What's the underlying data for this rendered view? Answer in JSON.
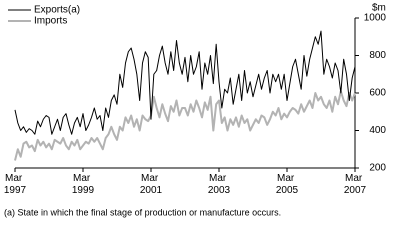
{
  "chart_data": {
    "type": "line",
    "y_axis_label": "$m",
    "footnote": "(a) State in which the final stage of production or manufacture occurs.",
    "categories": [
      "Mar 1997",
      null,
      null,
      null,
      null,
      null,
      null,
      null,
      null,
      null,
      null,
      null,
      null,
      null,
      null,
      null,
      null,
      null,
      null,
      null,
      null,
      null,
      null,
      null,
      "Mar 1999",
      null,
      null,
      null,
      null,
      null,
      null,
      null,
      null,
      null,
      null,
      null,
      null,
      null,
      null,
      null,
      null,
      null,
      null,
      null,
      null,
      null,
      null,
      null,
      "Mar 2001",
      null,
      null,
      null,
      null,
      null,
      null,
      null,
      null,
      null,
      null,
      null,
      null,
      null,
      null,
      null,
      null,
      null,
      null,
      null,
      null,
      null,
      null,
      null,
      "Mar 2003",
      null,
      null,
      null,
      null,
      null,
      null,
      null,
      null,
      null,
      null,
      null,
      null,
      null,
      null,
      null,
      null,
      null,
      null,
      null,
      null,
      null,
      null,
      null,
      "Mar 2005",
      null,
      null,
      null,
      null,
      null,
      null,
      null,
      null,
      null,
      null,
      null,
      null,
      null,
      null,
      null,
      null,
      null,
      null,
      null,
      null,
      null,
      null,
      null,
      "Mar 2007"
    ],
    "series": [
      {
        "name": "Exports(a)",
        "color": "#000000",
        "width": 1,
        "values": [
          510,
          440,
          400,
          420,
          390,
          410,
          400,
          380,
          450,
          420,
          460,
          480,
          470,
          380,
          420,
          460,
          400,
          470,
          490,
          430,
          380,
          440,
          470,
          420,
          490,
          400,
          430,
          470,
          520,
          460,
          480,
          400,
          520,
          470,
          560,
          590,
          540,
          700,
          630,
          760,
          820,
          840,
          780,
          700,
          560,
          760,
          820,
          790,
          460,
          700,
          720,
          800,
          850,
          760,
          700,
          820,
          720,
          880,
          760,
          700,
          790,
          660,
          800,
          700,
          740,
          820,
          620,
          760,
          700,
          800,
          650,
          860,
          660,
          520,
          620,
          600,
          680,
          540,
          620,
          700,
          560,
          720,
          600,
          660,
          580,
          640,
          700,
          620,
          680,
          720,
          600,
          700,
          660,
          700,
          620,
          700,
          560,
          650,
          740,
          780,
          700,
          620,
          800,
          690,
          780,
          840,
          900,
          860,
          930,
          700,
          780,
          740,
          680,
          760,
          720,
          600,
          780,
          700,
          560,
          680,
          740
        ]
      },
      {
        "name": "Imports",
        "color": "#b3b3b3",
        "width": 2,
        "values": [
          240,
          300,
          260,
          330,
          340,
          310,
          320,
          290,
          350,
          320,
          340,
          310,
          330,
          300,
          350,
          340,
          330,
          360,
          320,
          300,
          340,
          320,
          350,
          300,
          320,
          340,
          330,
          360,
          340,
          360,
          330,
          300,
          360,
          380,
          420,
          380,
          350,
          420,
          400,
          470,
          440,
          480,
          420,
          460,
          400,
          480,
          460,
          450,
          480,
          580,
          520,
          470,
          540,
          490,
          450,
          530,
          500,
          560,
          480,
          520,
          520,
          480,
          540,
          500,
          560,
          520,
          470,
          550,
          510,
          580,
          400,
          540,
          560,
          440,
          470,
          400,
          460,
          430,
          470,
          420,
          480,
          440,
          460,
          400,
          430,
          460,
          440,
          480,
          470,
          430,
          460,
          500,
          480,
          520,
          460,
          490,
          470,
          500,
          520,
          510,
          490,
          540,
          500,
          530,
          560,
          520,
          600,
          560,
          580,
          540,
          520,
          560,
          500,
          580,
          540,
          610,
          560,
          530,
          600,
          560,
          600
        ]
      }
    ],
    "ylim": [
      200,
      1000
    ],
    "yticks": [
      200,
      400,
      600,
      800,
      1000
    ]
  }
}
